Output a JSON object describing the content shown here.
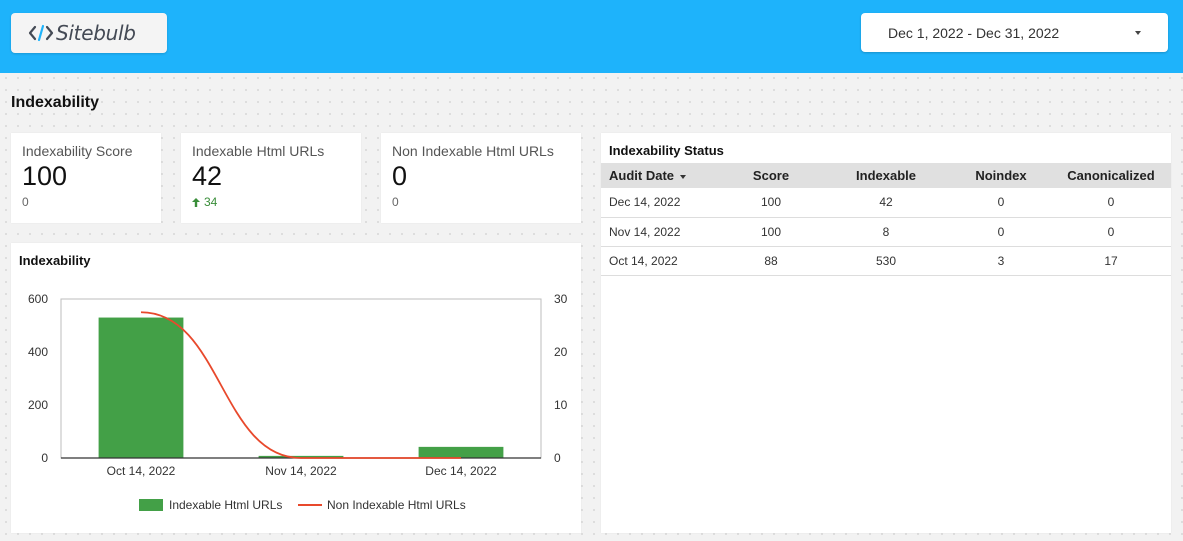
{
  "header": {
    "logo_text": "Sitebulb",
    "date_range": "Dec 1, 2022 - Dec 31, 2022"
  },
  "section_title": "Indexability",
  "kpis": [
    {
      "label": "Indexability Score",
      "value": "100",
      "sub": "0"
    },
    {
      "label": "Indexable Html URLs",
      "value": "42",
      "delta": "34"
    },
    {
      "label": "Non Indexable Html URLs",
      "value": "0",
      "sub": "0"
    }
  ],
  "chart": {
    "title": "Indexability"
  },
  "chart_data": {
    "type": "bar",
    "categories": [
      "Oct 14, 2022",
      "Nov 14, 2022",
      "Dec 14, 2022"
    ],
    "series": [
      {
        "name": "Indexable Html URLs",
        "type": "bar",
        "axis": "left",
        "values": [
          530,
          8,
          42
        ],
        "color": "#43a047"
      },
      {
        "name": "Non Indexable Html URLs",
        "type": "line",
        "axis": "right",
        "values": [
          27.5,
          0,
          0
        ],
        "color": "#e8492c"
      }
    ],
    "left_axis": {
      "min": 0,
      "max": 600,
      "ticks": [
        0,
        200,
        400,
        600
      ]
    },
    "right_axis": {
      "min": 0,
      "max": 30,
      "ticks": [
        0,
        10,
        20,
        30
      ]
    },
    "legend_position": "bottom",
    "grid": false
  },
  "table": {
    "title": "Indexability Status",
    "columns": [
      "Audit Date",
      "Score",
      "Indexable",
      "Noindex",
      "Canonicalized"
    ],
    "rows": [
      [
        "Dec 14, 2022",
        "100",
        "42",
        "0",
        "0"
      ],
      [
        "Nov 14, 2022",
        "100",
        "8",
        "0",
        "0"
      ],
      [
        "Oct 14, 2022",
        "88",
        "530",
        "3",
        "17"
      ]
    ]
  },
  "colors": {
    "header_bg": "#1eb3fb",
    "bar": "#43a047",
    "line": "#e8492c",
    "delta_positive": "#3a8e3a"
  }
}
